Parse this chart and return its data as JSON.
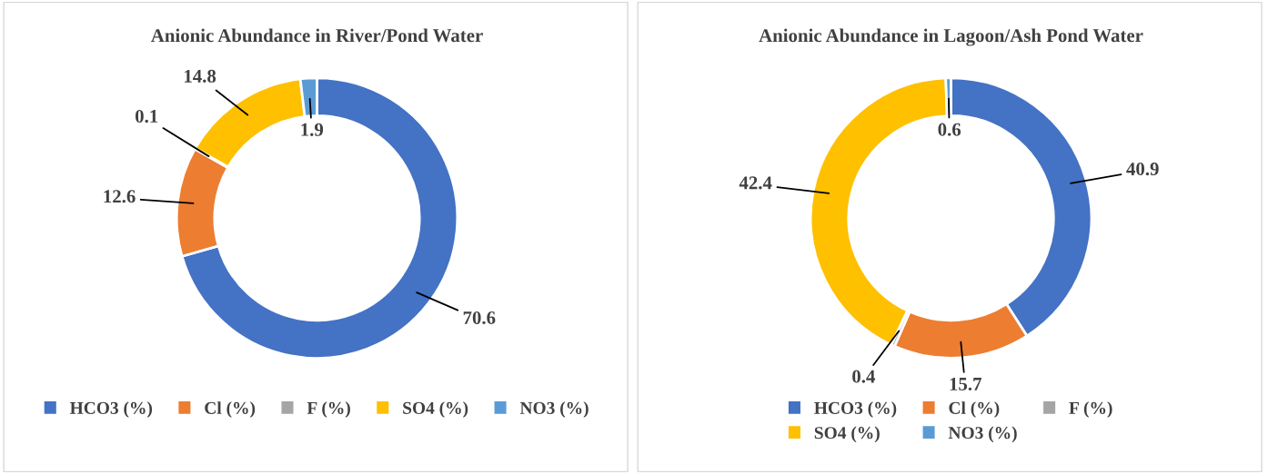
{
  "chart_data": [
    {
      "type": "donut",
      "title": "Anionic Abundance in River/Pond Water",
      "categories": [
        "HCO3 (%)",
        "Cl (%)",
        "F (%)",
        "SO4 (%)",
        "NO3 (%)"
      ],
      "values": [
        70.6,
        12.6,
        0.1,
        14.8,
        1.9
      ],
      "colors": [
        "#4472c4",
        "#ed7d31",
        "#a5a5a5",
        "#ffc000",
        "#5b9bd5"
      ],
      "data_labels": true,
      "legend": "bottom"
    },
    {
      "type": "donut",
      "title": "Anionic Abundance in Lagoon/Ash Pond Water",
      "categories": [
        "HCO3 (%)",
        "Cl (%)",
        "F (%)",
        "SO4 (%)",
        "NO3 (%)"
      ],
      "values": [
        40.9,
        15.7,
        0.4,
        42.4,
        0.6
      ],
      "colors": [
        "#4472c4",
        "#ed7d31",
        "#a5a5a5",
        "#ffc000",
        "#5b9bd5"
      ],
      "data_labels": true,
      "legend": "bottom"
    }
  ]
}
